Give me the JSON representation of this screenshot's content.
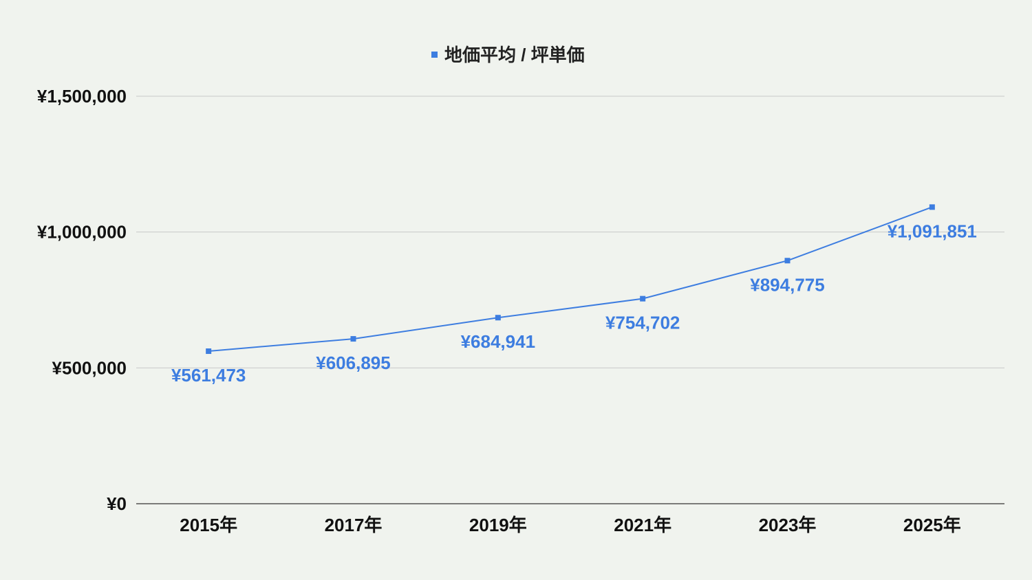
{
  "chart_data": {
    "type": "line",
    "categories": [
      "2015年",
      "2017年",
      "2019年",
      "2021年",
      "2023年",
      "2025年"
    ],
    "series": [
      {
        "name": "地価平均 / 坪単価",
        "values": [
          561473,
          606895,
          684941,
          754702,
          894775,
          1091851
        ],
        "labels": [
          "¥561,473",
          "¥606,895",
          "¥684,941",
          "¥754,702",
          "¥894,775",
          "¥1,091,851"
        ],
        "color": "#3d7de0"
      }
    ],
    "ylim": [
      0,
      1500000
    ],
    "yticks": [
      0,
      500000,
      1000000,
      1500000
    ],
    "ytick_labels": [
      "¥0",
      "¥500,000",
      "¥1,000,000",
      "¥1,500,000"
    ],
    "title": "",
    "xlabel": "",
    "ylabel": "",
    "legend_position": "top-center",
    "grid": true,
    "colors": {
      "background": "#f0f3ee",
      "series": "#3d7de0",
      "grid": "#c8c8c8",
      "axis": "#333333",
      "text": "#111111"
    }
  }
}
